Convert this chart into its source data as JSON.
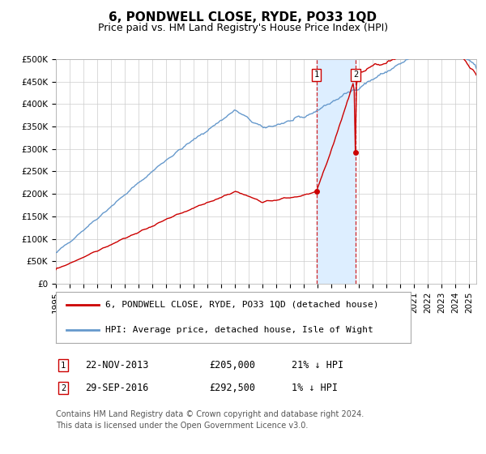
{
  "title": "6, PONDWELL CLOSE, RYDE, PO33 1QD",
  "subtitle": "Price paid vs. HM Land Registry's House Price Index (HPI)",
  "ylim": [
    0,
    500000
  ],
  "yticks": [
    0,
    50000,
    100000,
    150000,
    200000,
    250000,
    300000,
    350000,
    400000,
    450000,
    500000
  ],
  "ytick_labels": [
    "£0",
    "£50K",
    "£100K",
    "£150K",
    "£200K",
    "£250K",
    "£300K",
    "£350K",
    "£400K",
    "£450K",
    "£500K"
  ],
  "xlim_start": 1995.0,
  "xlim_end": 2025.5,
  "sale1_date": 2013.896,
  "sale1_price": 205000,
  "sale2_date": 2016.747,
  "sale2_price": 292500,
  "line_color_price": "#cc0000",
  "line_color_hpi": "#6699cc",
  "shade_color": "#ddeeff",
  "legend_label_price": "6, PONDWELL CLOSE, RYDE, PO33 1QD (detached house)",
  "legend_label_hpi": "HPI: Average price, detached house, Isle of Wight",
  "table_row1": [
    "1",
    "22-NOV-2013",
    "£205,000",
    "21% ↓ HPI"
  ],
  "table_row2": [
    "2",
    "29-SEP-2016",
    "£292,500",
    "1% ↓ HPI"
  ],
  "footer": "Contains HM Land Registry data © Crown copyright and database right 2024.\nThis data is licensed under the Open Government Licence v3.0.",
  "bg_color": "#ffffff",
  "grid_color": "#cccccc",
  "title_fontsize": 11,
  "subtitle_fontsize": 9,
  "tick_fontsize": 7.5,
  "legend_fontsize": 8,
  "table_fontsize": 8.5,
  "footer_fontsize": 7
}
